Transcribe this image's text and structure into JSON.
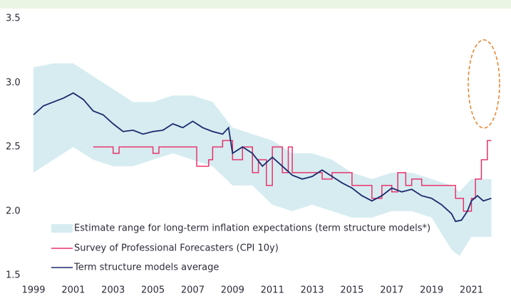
{
  "chart_data": {
    "type": "line",
    "xlim": [
      1999,
      2022.2
    ],
    "xticks": [
      1999,
      2001,
      2003,
      2005,
      2007,
      2009,
      2011,
      2013,
      2015,
      2017,
      2019,
      2021
    ],
    "ylim": [
      1.5,
      3.5
    ],
    "yticks": [
      1.5,
      {
        "value": 2.0,
        "label": "2.0"
      },
      2.5,
      {
        "value": 3.0,
        "label": "3.0"
      },
      3.5
    ],
    "series": [
      {
        "name": "Estimate range for long-term inflation expectations (term structure models*)",
        "kind": "band",
        "color": "#d6ecf1",
        "x": [
          1999,
          2000,
          2001,
          2002,
          2003,
          2004,
          2005,
          2006,
          2007,
          2008,
          2009,
          2010,
          2011,
          2012,
          2013,
          2014,
          2015,
          2016,
          2017,
          2018,
          2019,
          2020,
          2020.4,
          2021,
          2022
        ],
        "low": [
          2.3,
          2.4,
          2.5,
          2.4,
          2.35,
          2.35,
          2.4,
          2.45,
          2.4,
          2.35,
          2.2,
          2.2,
          2.05,
          2.0,
          2.05,
          2.0,
          1.95,
          1.95,
          2.0,
          2.0,
          1.95,
          1.7,
          1.65,
          1.8,
          1.8
        ],
        "high": [
          3.12,
          3.15,
          3.15,
          3.05,
          2.95,
          2.85,
          2.85,
          2.9,
          2.9,
          2.85,
          2.65,
          2.6,
          2.55,
          2.45,
          2.45,
          2.4,
          2.3,
          2.25,
          2.3,
          2.3,
          2.25,
          2.2,
          2.15,
          2.25,
          2.25
        ]
      },
      {
        "name": "Survey of Professional Forecasters (CPI 10y)",
        "kind": "step",
        "color": "#e8336b",
        "x": [
          2002,
          2003,
          2003.3,
          2005,
          2005.3,
          2007.2,
          2007.8,
          2008,
          2008.5,
          2009,
          2009.5,
          2010,
          2010.3,
          2010.7,
          2011,
          2011.5,
          2011.8,
          2012,
          2012.3,
          2013.5,
          2014,
          2015,
          2016,
          2016.5,
          2017,
          2017.3,
          2017.7,
          2018,
          2018.5,
          2020.2,
          2020.6,
          2021,
          2021.2,
          2021.5,
          2021.8,
          2022
        ],
        "values": [
          2.5,
          2.45,
          2.5,
          2.45,
          2.5,
          2.35,
          2.4,
          2.5,
          2.55,
          2.4,
          2.5,
          2.3,
          2.4,
          2.2,
          2.5,
          2.3,
          2.5,
          2.3,
          2.3,
          2.25,
          2.3,
          2.2,
          2.1,
          2.2,
          2.15,
          2.3,
          2.2,
          2.25,
          2.2,
          2.1,
          2.0,
          2.1,
          2.25,
          2.4,
          2.55,
          2.55
        ]
      },
      {
        "name": "Term structure models average",
        "kind": "line",
        "color": "#1a2a6c",
        "x": [
          1999,
          1999.5,
          2000,
          2000.5,
          2001,
          2001.5,
          2002,
          2002.5,
          2003,
          2003.5,
          2004,
          2004.5,
          2005,
          2005.5,
          2006,
          2006.5,
          2007,
          2007.5,
          2008,
          2008.5,
          2008.8,
          2009,
          2009.5,
          2010,
          2010.5,
          2011,
          2011.5,
          2012,
          2012.5,
          2013,
          2013.5,
          2014,
          2014.5,
          2015,
          2015.5,
          2016,
          2016.5,
          2017,
          2017.5,
          2018,
          2018.5,
          2019,
          2019.5,
          2020,
          2020.2,
          2020.5,
          2020.8,
          2021,
          2021.3,
          2021.6,
          2022
        ],
        "values": [
          2.75,
          2.82,
          2.85,
          2.88,
          2.92,
          2.87,
          2.78,
          2.75,
          2.68,
          2.62,
          2.63,
          2.6,
          2.62,
          2.63,
          2.68,
          2.65,
          2.7,
          2.65,
          2.62,
          2.6,
          2.65,
          2.45,
          2.5,
          2.45,
          2.35,
          2.42,
          2.35,
          2.28,
          2.25,
          2.27,
          2.32,
          2.27,
          2.22,
          2.18,
          2.12,
          2.08,
          2.12,
          2.18,
          2.15,
          2.17,
          2.12,
          2.1,
          2.05,
          1.98,
          1.92,
          1.93,
          2.0,
          2.08,
          2.12,
          2.08,
          2.1
        ]
      }
    ]
  }
}
